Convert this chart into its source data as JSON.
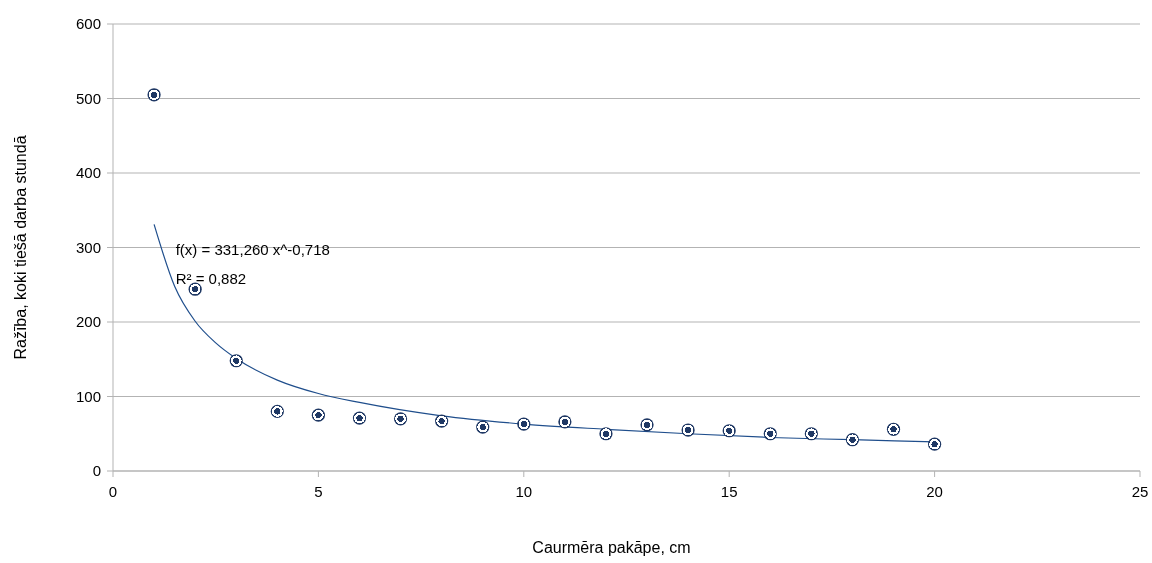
{
  "chart_data": {
    "type": "scatter",
    "xlabel": "Caurmēra pakāpe, cm",
    "ylabel": "Ražība, koki tiešā darba stundā",
    "xlim": [
      0,
      25
    ],
    "xticks": [
      0,
      5,
      10,
      15,
      20,
      25
    ],
    "ylim": [
      0,
      600
    ],
    "yticks": [
      0,
      100,
      200,
      300,
      400,
      500,
      600
    ],
    "grid": "y",
    "marker": "circle",
    "annotations": [
      "f(x) = 331,260 x^-0,718",
      "R² = 0,882"
    ],
    "series": [
      {
        "type": "scatter",
        "color": "#1f3864",
        "x": [
          1,
          2,
          3,
          4,
          5,
          6,
          7,
          8,
          9,
          10,
          11,
          12,
          13,
          14,
          15,
          16,
          17,
          18,
          19,
          20
        ],
        "values": [
          505,
          244,
          148,
          80,
          75,
          71,
          70,
          67,
          59,
          63,
          66,
          50,
          62,
          55,
          54,
          50,
          50,
          42,
          56,
          36
        ]
      },
      {
        "type": "line",
        "marker": "none",
        "color": "#1f4e8c",
        "x": [
          1,
          1.5,
          2,
          2.5,
          3,
          4,
          5,
          6,
          8,
          10,
          12,
          14,
          16,
          18,
          20
        ],
        "values": [
          331,
          248,
          201,
          172,
          151,
          122,
          104,
          92,
          74,
          63,
          56,
          50,
          45,
          42,
          39
        ]
      }
    ]
  }
}
